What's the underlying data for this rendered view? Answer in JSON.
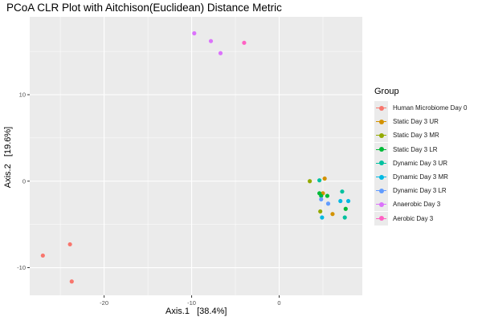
{
  "chart_data": {
    "type": "scatter",
    "title": "PCoA CLR Plot with Aitchison(Euclidean) Distance Metric",
    "xlabel": "Axis.1   [38.4%]",
    "ylabel": "Axis.2   [19.6%]",
    "xlim": [
      -28.5,
      9.5
    ],
    "ylim": [
      -13.2,
      19
    ],
    "x_ticks": [
      -20,
      -10,
      0
    ],
    "x_tick_labels": [
      "-20",
      "-10",
      "0"
    ],
    "y_ticks": [
      -10,
      0,
      10
    ],
    "y_tick_labels": [
      "-10",
      "0",
      "10"
    ],
    "grid": true,
    "legend_position": "right",
    "legend_title": "Group",
    "series": [
      {
        "name": "Human Microbiome Day 0",
        "color": "#F8766D",
        "points": [
          [
            -27.0,
            -8.6
          ],
          [
            -23.9,
            -7.3
          ],
          [
            -23.7,
            -11.6
          ]
        ]
      },
      {
        "name": "Static Day 3 UR",
        "color": "#D39200",
        "points": [
          [
            5.2,
            0.3
          ],
          [
            6.1,
            -3.8
          ],
          [
            5.0,
            -1.4
          ]
        ]
      },
      {
        "name": "Static Day 3 MR",
        "color": "#93AA00",
        "points": [
          [
            3.5,
            0.0
          ],
          [
            4.7,
            -3.5
          ]
        ]
      },
      {
        "name": "Static Day 3 LR",
        "color": "#00BA38",
        "points": [
          [
            4.8,
            -1.7
          ],
          [
            5.5,
            -1.7
          ],
          [
            7.6,
            -3.2
          ],
          [
            4.6,
            -1.4
          ]
        ]
      },
      {
        "name": "Dynamic Day 3 UR",
        "color": "#00C19F",
        "points": [
          [
            4.6,
            0.1
          ],
          [
            7.2,
            -1.2
          ],
          [
            7.5,
            -4.2
          ]
        ]
      },
      {
        "name": "Dynamic Day 3 MR",
        "color": "#00B9E3",
        "points": [
          [
            7.0,
            -2.3
          ],
          [
            4.9,
            -4.2
          ],
          [
            7.9,
            -2.3
          ]
        ]
      },
      {
        "name": "Dynamic Day 3 LR",
        "color": "#619CFF",
        "points": [
          [
            5.6,
            -2.6
          ],
          [
            4.8,
            -2.1
          ]
        ]
      },
      {
        "name": "Anaerobic Day 3",
        "color": "#DB72FB",
        "points": [
          [
            -9.7,
            17.1
          ],
          [
            -7.8,
            16.2
          ],
          [
            -6.7,
            14.8
          ]
        ]
      },
      {
        "name": "Aerobic Day 3",
        "color": "#FF61C3",
        "points": [
          [
            -4.0,
            16.0
          ]
        ]
      }
    ]
  }
}
